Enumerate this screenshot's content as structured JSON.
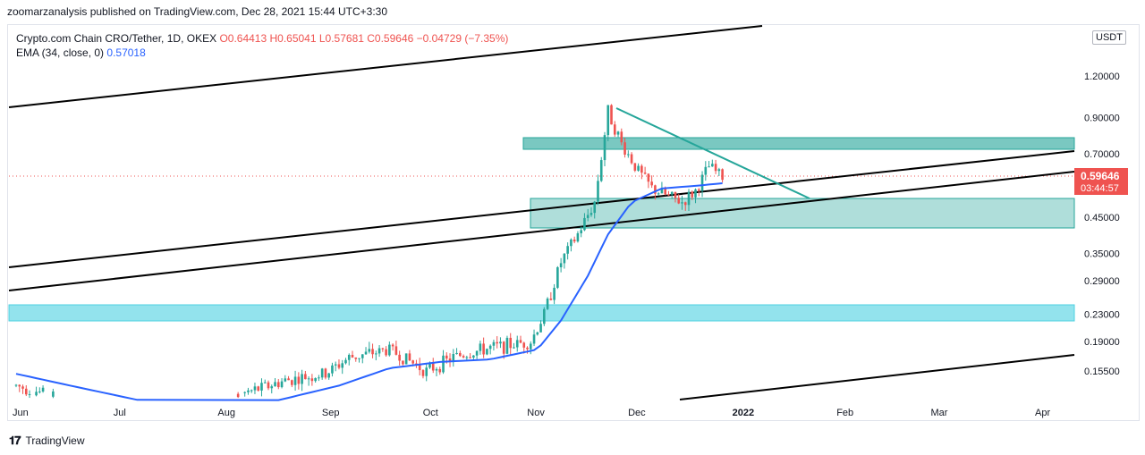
{
  "header": {
    "publisher_line": "zoomarzanalysis published on TradingView.com, Dec 28, 2021 15:44 UTC+3:30"
  },
  "legend": {
    "symbol": "Crypto.com Chain CRO/Tether, 1D, OKEX",
    "ohlc": "O0.64413 H0.65041 L0.57681 C0.59646 −0.04729 (−7.35%)",
    "ema_label": "EMA (34, close, 0)",
    "ema_value": "0.57018"
  },
  "currency_badge": "USDT",
  "footer": {
    "brand": "TradingView"
  },
  "colors": {
    "up": "#26a69a",
    "down": "#ef5350",
    "ema": "#2962ff",
    "zone_teal": "#4db6ac",
    "zone_cyan": "#80deea",
    "trendline": "#000000",
    "triangle_line": "#26a69a",
    "price_label_bg": "#ef5350"
  },
  "chart_data": {
    "type": "candlestick",
    "scale": "log",
    "ylim": [
      0.13,
      1.5
    ],
    "y_ticks": [
      "1.20000",
      "0.90000",
      "0.70000",
      "0.45000",
      "0.35000",
      "0.29000",
      "0.23000",
      "0.19000",
      "0.15500"
    ],
    "y_tick_values": [
      1.2,
      0.9,
      0.7,
      0.45,
      0.35,
      0.29,
      0.23,
      0.19,
      0.155
    ],
    "x_ticks": [
      "Jun",
      "Jul",
      "Aug",
      "Sep",
      "Oct",
      "Nov",
      "Dec",
      "2022",
      "Feb",
      "Mar",
      "Apr"
    ],
    "last_price": "0.59646",
    "countdown": "03:44:57",
    "price_path": [
      [
        "2021-06-01",
        0.14
      ],
      [
        "2021-06-15",
        0.128
      ],
      [
        "2021-07-01",
        0.118
      ],
      [
        "2021-07-20",
        0.11
      ],
      [
        "2021-08-05",
        0.13
      ],
      [
        "2021-08-20",
        0.145
      ],
      [
        "2021-09-01",
        0.152
      ],
      [
        "2021-09-08",
        0.17
      ],
      [
        "2021-09-20",
        0.18
      ],
      [
        "2021-10-01",
        0.155
      ],
      [
        "2021-10-10",
        0.172
      ],
      [
        "2021-10-20",
        0.182
      ],
      [
        "2021-11-01",
        0.19
      ],
      [
        "2021-11-05",
        0.23
      ],
      [
        "2021-11-10",
        0.33
      ],
      [
        "2021-11-15",
        0.4
      ],
      [
        "2021-11-20",
        0.5
      ],
      [
        "2021-11-24",
        0.94
      ],
      [
        "2021-11-28",
        0.75
      ],
      [
        "2021-12-03",
        0.62
      ],
      [
        "2021-12-07",
        0.55
      ],
      [
        "2021-12-12",
        0.52
      ],
      [
        "2021-12-16",
        0.5
      ],
      [
        "2021-12-20",
        0.54
      ],
      [
        "2021-12-24",
        0.64
      ],
      [
        "2021-12-28",
        0.596
      ]
    ],
    "ema_path": [
      [
        "2021-06-01",
        0.152
      ],
      [
        "2021-06-20",
        0.138
      ],
      [
        "2021-07-10",
        0.125
      ],
      [
        "2021-08-05",
        0.118
      ],
      [
        "2021-08-20",
        0.128
      ],
      [
        "2021-09-05",
        0.14
      ],
      [
        "2021-09-20",
        0.158
      ],
      [
        "2021-10-05",
        0.165
      ],
      [
        "2021-10-20",
        0.168
      ],
      [
        "2021-11-03",
        0.18
      ],
      [
        "2021-11-10",
        0.22
      ],
      [
        "2021-11-18",
        0.3
      ],
      [
        "2021-11-24",
        0.4
      ],
      [
        "2021-12-01",
        0.5
      ],
      [
        "2021-12-10",
        0.55
      ],
      [
        "2021-12-20",
        0.56
      ],
      [
        "2021-12-28",
        0.57018
      ]
    ]
  }
}
